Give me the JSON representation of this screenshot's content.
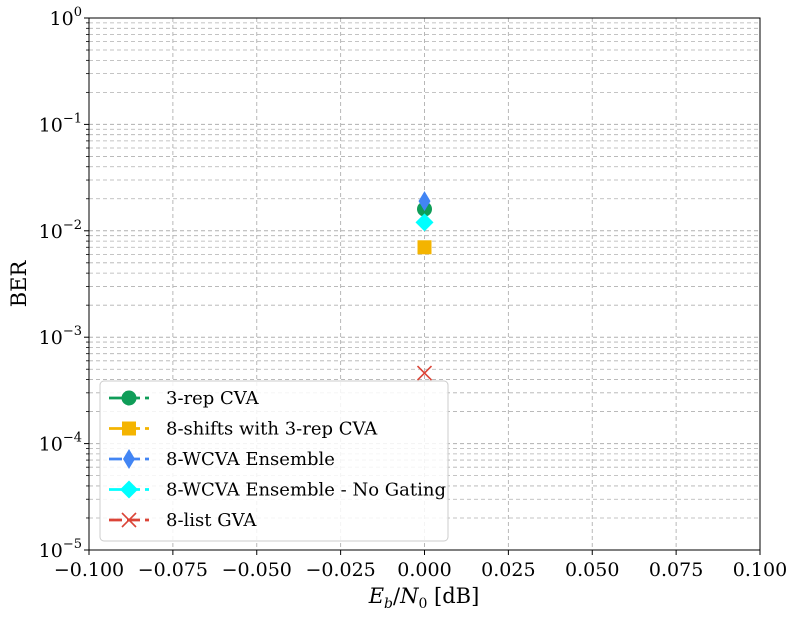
{
  "chart_data": {
    "type": "scatter",
    "xlabel": "E_b/N_0 [dB]",
    "ylabel": "BER",
    "yscale": "log",
    "xlim": [
      -0.1,
      0.1
    ],
    "ylim": [
      1e-05,
      1
    ],
    "x_ticks": [
      -0.1,
      -0.075,
      -0.05,
      -0.025,
      0.0,
      0.025,
      0.05,
      0.075,
      0.1
    ],
    "x_tick_labels": [
      "−0.100",
      "−0.075",
      "−0.050",
      "−0.025",
      "0.000",
      "0.025",
      "0.050",
      "0.075",
      "0.100"
    ],
    "y_tick_labels": [
      {
        "base": "10",
        "exp": "−5"
      },
      {
        "base": "10",
        "exp": "−4"
      },
      {
        "base": "10",
        "exp": "−3"
      },
      {
        "base": "10",
        "exp": "−2"
      },
      {
        "base": "10",
        "exp": "−1"
      },
      {
        "base": "10",
        "exp": "0"
      }
    ],
    "grid": true,
    "legend_position": "lower-left",
    "series": [
      {
        "name": "3-rep CVA",
        "color": "#0f9d58",
        "marker": "circle",
        "x": [
          0.0
        ],
        "y": [
          0.016
        ]
      },
      {
        "name": "8-shifts with 3-rep CVA",
        "color": "#f4b400",
        "marker": "square",
        "x": [
          0.0
        ],
        "y": [
          0.007
        ]
      },
      {
        "name": "8-WCVA Ensemble",
        "color": "#4285f4",
        "marker": "thin-diamond",
        "x": [
          0.0
        ],
        "y": [
          0.019
        ]
      },
      {
        "name": "8-WCVA Ensemble - No Gating",
        "color": "#00ffff",
        "marker": "diamond",
        "x": [
          0.0
        ],
        "y": [
          0.012
        ]
      },
      {
        "name": "8-list GVA",
        "color": "#db4437",
        "marker": "x",
        "x": [
          0.0
        ],
        "y": [
          0.00046
        ]
      }
    ]
  }
}
